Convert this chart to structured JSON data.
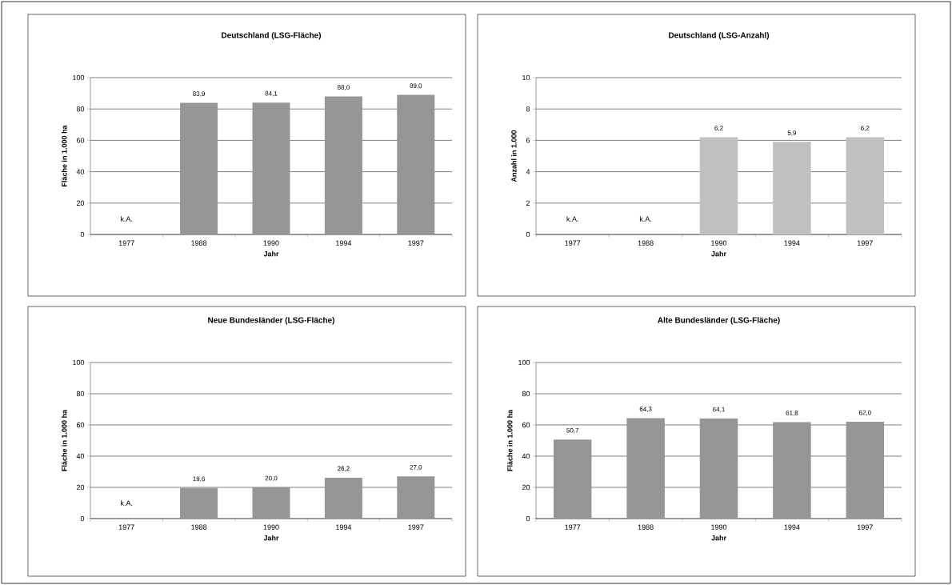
{
  "chart_data": [
    {
      "type": "bar",
      "title": "Deutschland (LSG-Fläche)",
      "xlabel": "Jahr",
      "ylabel": "Fläche in 1.000 ha",
      "categories": [
        "1977",
        "1988",
        "1990",
        "1994",
        "1997"
      ],
      "values": [
        null,
        83.9,
        84.1,
        88.0,
        89.0
      ],
      "value_labels": [
        null,
        "83,9",
        "84,1",
        "88,0",
        "89,0"
      ],
      "color": "#969696",
      "ylim": [
        0,
        100
      ],
      "yticks": [
        0,
        20,
        40,
        60,
        80,
        100
      ],
      "grid": "y",
      "annotations": [
        "k.A."
      ]
    },
    {
      "type": "bar",
      "title": "Deutschland (LSG-Anzahl)",
      "xlabel": "Jahr",
      "ylabel": "Anzahl in 1.000",
      "categories": [
        "1977",
        "1988",
        "1990",
        "1994",
        "1997"
      ],
      "values": [
        null,
        null,
        6.2,
        5.9,
        6.2
      ],
      "value_labels": [
        null,
        null,
        "6,2",
        "5,9",
        "6,2"
      ],
      "color": "#c0c0c0",
      "ylim": [
        0,
        10
      ],
      "yticks": [
        0,
        2,
        4,
        6,
        8,
        10
      ],
      "grid": "y",
      "annotations": [
        "k.A.",
        "k.A."
      ]
    },
    {
      "type": "bar",
      "title": "Neue Bundesländer (LSG-Fläche)",
      "xlabel": "Jahr",
      "ylabel": "Fläche in 1.000 ha",
      "categories": [
        "1977",
        "1988",
        "1990",
        "1994",
        "1997"
      ],
      "values": [
        null,
        19.6,
        20.0,
        26.2,
        27.0
      ],
      "value_labels": [
        null,
        "19,6",
        "20,0",
        "26,2",
        "27,0"
      ],
      "color": "#969696",
      "ylim": [
        0,
        100
      ],
      "yticks": [
        0,
        20,
        40,
        60,
        80,
        100
      ],
      "grid": "y",
      "annotations": [
        "k.A."
      ]
    },
    {
      "type": "bar",
      "title": "Alte Bundesländer (LSG-Fläche)",
      "xlabel": "Jahr",
      "ylabel": "Fläche in 1.000 ha",
      "categories": [
        "1977",
        "1988",
        "1990",
        "1994",
        "1997"
      ],
      "values": [
        50.7,
        64.3,
        64.1,
        61.8,
        62.0
      ],
      "value_labels": [
        "50,7",
        "64,3",
        "64,1",
        "61,8",
        "62,0"
      ],
      "color": "#969696",
      "ylim": [
        0,
        100
      ],
      "yticks": [
        0,
        20,
        40,
        60,
        80,
        100
      ],
      "grid": "y"
    }
  ]
}
